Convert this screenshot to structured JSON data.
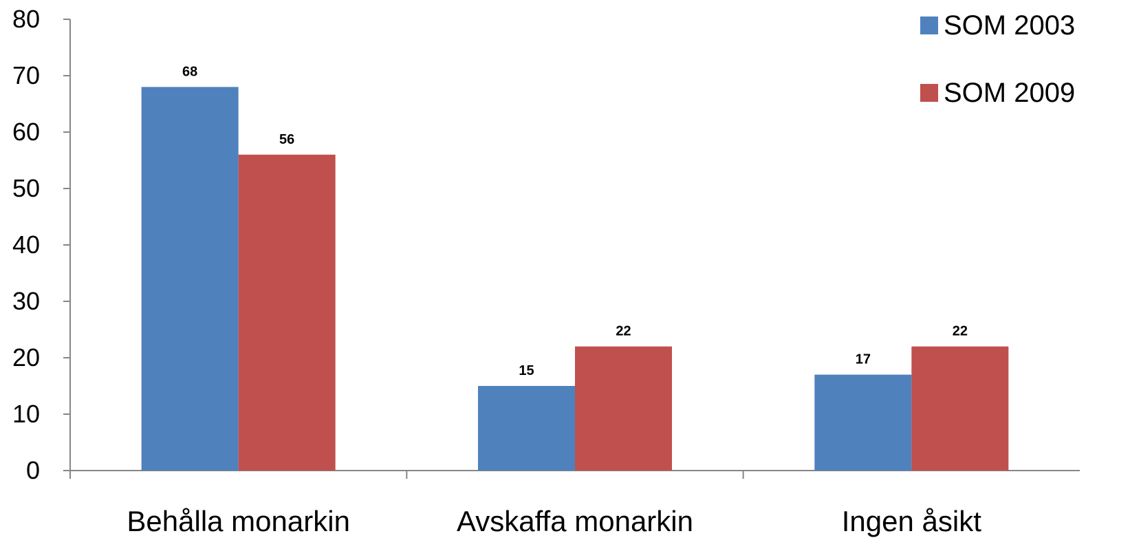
{
  "chart_data": {
    "type": "bar",
    "categories": [
      "Behålla monarkin",
      "Avskaffa monarkin",
      "Ingen åsikt"
    ],
    "series": [
      {
        "name": "SOM 2003",
        "values": [
          68,
          15,
          17
        ],
        "color": "#4F81BD"
      },
      {
        "name": "SOM 2009",
        "values": [
          56,
          22,
          22
        ],
        "color": "#C0504D"
      }
    ],
    "ylim": [
      0,
      80
    ],
    "yticks": [
      0,
      10,
      20,
      30,
      40,
      50,
      60,
      70,
      80
    ],
    "data_labels": true,
    "grid": false,
    "legend_position": "top-right",
    "axis_color": "#868686"
  }
}
